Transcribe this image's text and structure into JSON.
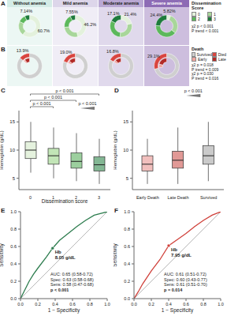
{
  "chart_data": [
    {
      "type": "pie",
      "title": "A",
      "legend_title": "Dissemination Score",
      "categories": [
        "0",
        "1",
        "2",
        "3"
      ],
      "colors": [
        "#e3f1dc",
        "#a8d69a",
        "#5cb85c",
        "#1e7b3c"
      ],
      "data_labels": true,
      "series": [
        {
          "name": "Without anemia",
          "values": [
            60.7,
            21.0,
            11.16,
            7.14
          ],
          "value_labels": [
            "60.7%",
            null,
            null,
            "7.14%"
          ]
        },
        {
          "name": "Mild anemia",
          "values": [
            46.2,
            27.0,
            19.25,
            7.55
          ],
          "value_labels": [
            "46.2%",
            null,
            null,
            "7.55%"
          ]
        },
        {
          "name": "Moderate anemia",
          "values": [
            21.4,
            30.0,
            31.5,
            17.1
          ],
          "value_labels": [
            "21.4%",
            null,
            null,
            "17.1%"
          ]
        },
        {
          "name": "Severe anemia",
          "values": [
            5.82,
            30.0,
            39.78,
            24.4
          ],
          "value_labels": [
            "5.82%",
            null,
            null,
            "24.4%"
          ]
        }
      ],
      "annotations": [
        "χ2 p < 0.001",
        "P trend < 0.001"
      ]
    },
    {
      "type": "pie",
      "title": "B",
      "legend_title": "Death",
      "categories": [
        "Survived",
        "Died"
      ],
      "colors": [
        "#cfcfcf",
        "#d9453f"
      ],
      "data_labels": true,
      "inner_series": [
        {
          "name": "Early",
          "color": "#f0a5a0"
        },
        {
          "name": "Late",
          "color": "#b22b27"
        }
      ],
      "series": [
        {
          "values": [
            86.1,
            13.9
          ],
          "value_labels": [
            null,
            "13.9%"
          ],
          "inner_values": [
            3.5,
            10.4
          ]
        },
        {
          "values": [
            81.0,
            19.0
          ],
          "value_labels": [
            null,
            "19.0%"
          ],
          "inner_values": [
            5.0,
            14.0
          ]
        },
        {
          "values": [
            83.2,
            16.8
          ],
          "value_labels": [
            null,
            "16.8%"
          ],
          "inner_values": [
            4.5,
            12.3
          ]
        },
        {
          "values": [
            70.9,
            29.1
          ],
          "value_labels": [
            null,
            "29.1%"
          ],
          "inner_values": [
            8.0,
            21.1
          ]
        }
      ],
      "annotations": [
        "χ2 p = 0.018",
        "P trend = 0.009",
        "χ2 p = 0.030",
        "P trend = 0.016"
      ]
    },
    {
      "type": "box",
      "title": "C",
      "categories": [
        "0",
        "1",
        "2",
        "3"
      ],
      "x_label": "Dissemination score",
      "y_label": "Hemoglobin (g/dL)",
      "ylim": [
        3,
        17
      ],
      "yticks": [
        5,
        10,
        15
      ],
      "colors": [
        "#cfe8c3",
        "#8fcf7c",
        "#4aa84f",
        "#1e7b3c"
      ],
      "boxes": [
        {
          "min": 6,
          "q1": 8.5,
          "median": 10,
          "q3": 11.5,
          "max": 15
        },
        {
          "min": 5,
          "q1": 7.5,
          "median": 9,
          "q3": 10.3,
          "max": 14
        },
        {
          "min": 4.5,
          "q1": 6.8,
          "median": 8,
          "q3": 9.5,
          "max": 13
        },
        {
          "min": 4,
          "q1": 6.3,
          "median": 7.4,
          "q3": 8.8,
          "max": 12
        }
      ],
      "comparisons": [
        {
          "from": "0",
          "to": "3",
          "label": "p < 0.001"
        },
        {
          "from": "0",
          "to": "2",
          "label": "p < 0.001"
        },
        {
          "from": "0",
          "to": "1",
          "label": "p < 0.001"
        }
      ],
      "trend_label": "p < 0.001"
    },
    {
      "type": "box",
      "title": "D",
      "categories": [
        "Early Death",
        "Late Death",
        "Survived"
      ],
      "y_label": "Hemoglobin (g/dL)",
      "ylim": [
        3,
        17
      ],
      "yticks": [
        5,
        10,
        15
      ],
      "colors": [
        "#e58b86",
        "#c9463f",
        "#9e9e9e"
      ],
      "boxes": [
        {
          "min": 4,
          "q1": 6.3,
          "median": 7.5,
          "q3": 9,
          "max": 12
        },
        {
          "min": 4,
          "q1": 6.8,
          "median": 8.2,
          "q3": 9.8,
          "max": 14
        },
        {
          "min": 4.5,
          "q1": 7.5,
          "median": 9,
          "q3": 10.8,
          "max": 15
        }
      ],
      "trend_label": "p < 0.001"
    },
    {
      "type": "line",
      "title": "E",
      "x_label": "1 − Specificity",
      "y_label": "Sensitivity",
      "xlim": [
        0,
        1
      ],
      "ylim": [
        0,
        1
      ],
      "xticks": [
        {
          "value": 0,
          "label": "0.0"
        },
        {
          "value": 0.2,
          "label": "0.2"
        },
        {
          "value": 0.4,
          "label": "0.4"
        },
        {
          "value": 0.6,
          "label": "0.6"
        },
        {
          "value": 0.8,
          "label": "0.8"
        },
        {
          "value": 1,
          "label": "1.0"
        }
      ],
      "yticks": [
        {
          "value": 0,
          "label": "0.0"
        },
        {
          "value": 0.2,
          "label": "0.2"
        },
        {
          "value": 0.4,
          "label": "0.4"
        },
        {
          "value": 0.6,
          "label": "0.6"
        },
        {
          "value": 0.8,
          "label": "0.8"
        },
        {
          "value": 1,
          "label": "1.0"
        }
      ],
      "color": "#2e7d4f",
      "x": [
        0,
        0.05,
        0.1,
        0.15,
        0.2,
        0.3,
        0.37,
        0.45,
        0.55,
        0.65,
        0.75,
        0.85,
        1
      ],
      "values": [
        0,
        0.1,
        0.2,
        0.28,
        0.35,
        0.48,
        0.58,
        0.67,
        0.75,
        0.83,
        0.9,
        0.96,
        1
      ],
      "diagonal": {
        "x": [
          0,
          1
        ],
        "values": [
          0,
          1
        ]
      },
      "cutoff": {
        "x": 0.37,
        "y": 0.58,
        "label": [
          "Hb",
          "8.05 g/dL"
        ]
      },
      "annotations": [
        "AUC: 0.65 (0.58-0.72)",
        "Spec: 0.63 (0.58-0.68)",
        "Sens: 0.58 (0.47-0.68)",
        "p < 0.001"
      ]
    },
    {
      "type": "line",
      "title": "F",
      "x_label": "1 − Specificity",
      "y_label": "Sensitivity",
      "xlim": [
        0,
        1
      ],
      "ylim": [
        0,
        1
      ],
      "xticks": [
        {
          "value": 0,
          "label": "0.0"
        },
        {
          "value": 0.2,
          "label": "0.2"
        },
        {
          "value": 0.4,
          "label": "0.4"
        },
        {
          "value": 0.6,
          "label": "0.6"
        },
        {
          "value": 0.8,
          "label": "0.8"
        },
        {
          "value": 1,
          "label": "1.0"
        }
      ],
      "yticks": [
        {
          "value": 0,
          "label": "0.0"
        },
        {
          "value": 0.2,
          "label": "0.2"
        },
        {
          "value": 0.4,
          "label": "0.4"
        },
        {
          "value": 0.6,
          "label": "0.6"
        },
        {
          "value": 0.8,
          "label": "0.8"
        },
        {
          "value": 1,
          "label": "1.0"
        }
      ],
      "color": "#d0413b",
      "x": [
        0,
        0.05,
        0.1,
        0.2,
        0.3,
        0.4,
        0.5,
        0.6,
        0.7,
        0.8,
        0.9,
        1
      ],
      "values": [
        0,
        0.08,
        0.17,
        0.32,
        0.45,
        0.61,
        0.68,
        0.75,
        0.83,
        0.9,
        0.96,
        1
      ],
      "diagonal": {
        "x": [
          0,
          1
        ],
        "values": [
          0,
          1
        ]
      },
      "cutoff": {
        "x": 0.4,
        "y": 0.61,
        "label": [
          "Hb",
          "7.95 g/dL"
        ]
      },
      "annotations": [
        "AUC: 0.61 (0.51-0.72)",
        "Spec: 0.60 (0.43-0.77)",
        "Sens: 0.61 (0.51-0.70)",
        "p = 0.014"
      ]
    }
  ]
}
